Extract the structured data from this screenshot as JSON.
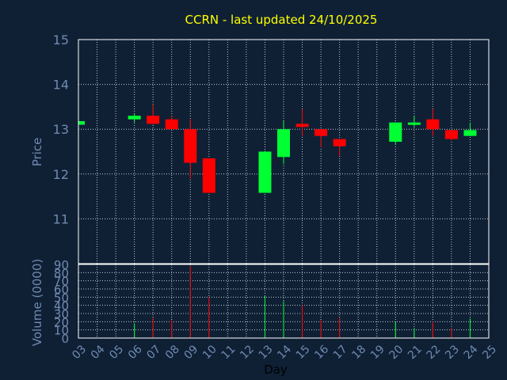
{
  "chart_data": {
    "type": "candlestick",
    "title": "CCRN - last updated 24/10/2025",
    "price_panel": {
      "ylabel": "Price",
      "ylim": [
        10.0,
        15.0
      ],
      "yticks": [
        11,
        12,
        13,
        14,
        15
      ],
      "grid": true
    },
    "volume_panel": {
      "ylabel": "Volume (0000)",
      "ylim": [
        0,
        90
      ],
      "yticks": [
        0,
        10,
        20,
        30,
        40,
        50,
        60,
        70,
        80,
        90
      ],
      "grid": true
    },
    "xlabel": "Day",
    "x_ticks": [
      "03",
      "04",
      "05",
      "06",
      "07",
      "08",
      "09",
      "10",
      "11",
      "12",
      "13",
      "14",
      "15",
      "16",
      "17",
      "18",
      "19",
      "20",
      "21",
      "22",
      "23",
      "24",
      "25"
    ],
    "candles": [
      {
        "day": "03",
        "open": 13.1,
        "high": 13.18,
        "low": 13.1,
        "close": 13.18,
        "volume": 0
      },
      {
        "day": "06",
        "open": 13.22,
        "high": 13.35,
        "low": 13.15,
        "close": 13.3,
        "volume": 18
      },
      {
        "day": "07",
        "open": 13.3,
        "high": 13.55,
        "low": 13.1,
        "close": 13.12,
        "volume": 25
      },
      {
        "day": "08",
        "open": 13.22,
        "high": 13.3,
        "low": 13.0,
        "close": 13.0,
        "volume": 22
      },
      {
        "day": "09",
        "open": 13.0,
        "high": 13.22,
        "low": 11.9,
        "close": 12.25,
        "volume": 88
      },
      {
        "day": "10",
        "open": 12.35,
        "high": 12.35,
        "low": 11.58,
        "close": 11.58,
        "volume": 50
      },
      {
        "day": "13",
        "open": 11.58,
        "high": 12.52,
        "low": 11.58,
        "close": 12.5,
        "volume": 52
      },
      {
        "day": "14",
        "open": 12.38,
        "high": 13.18,
        "low": 12.22,
        "close": 13.0,
        "volume": 45
      },
      {
        "day": "15",
        "open": 13.12,
        "high": 13.45,
        "low": 12.85,
        "close": 13.05,
        "volume": 40
      },
      {
        "day": "16",
        "open": 13.0,
        "high": 13.0,
        "low": 12.6,
        "close": 12.85,
        "volume": 22
      },
      {
        "day": "17",
        "open": 12.78,
        "high": 12.78,
        "low": 12.4,
        "close": 12.62,
        "volume": 25
      },
      {
        "day": "20",
        "open": 12.72,
        "high": 13.15,
        "low": 12.65,
        "close": 13.15,
        "volume": 20
      },
      {
        "day": "21",
        "open": 13.12,
        "high": 13.3,
        "low": 13.05,
        "close": 13.15,
        "volume": 12
      },
      {
        "day": "22",
        "open": 13.22,
        "high": 13.45,
        "low": 12.85,
        "close": 13.0,
        "volume": 20
      },
      {
        "day": "23",
        "open": 12.98,
        "high": 12.98,
        "low": 12.75,
        "close": 12.78,
        "volume": 12
      },
      {
        "day": "24",
        "open": 12.85,
        "high": 13.15,
        "low": 12.85,
        "close": 12.98,
        "volume": 24
      }
    ],
    "colors": {
      "background": "#0f2035",
      "plot_border": "#ffffff",
      "grid": "#c0c8d0",
      "up": "#00ff33",
      "down": "#ff0000",
      "title": "#ffff00",
      "axis_text": "#6f8ab0",
      "xlabel": "#000000"
    }
  }
}
